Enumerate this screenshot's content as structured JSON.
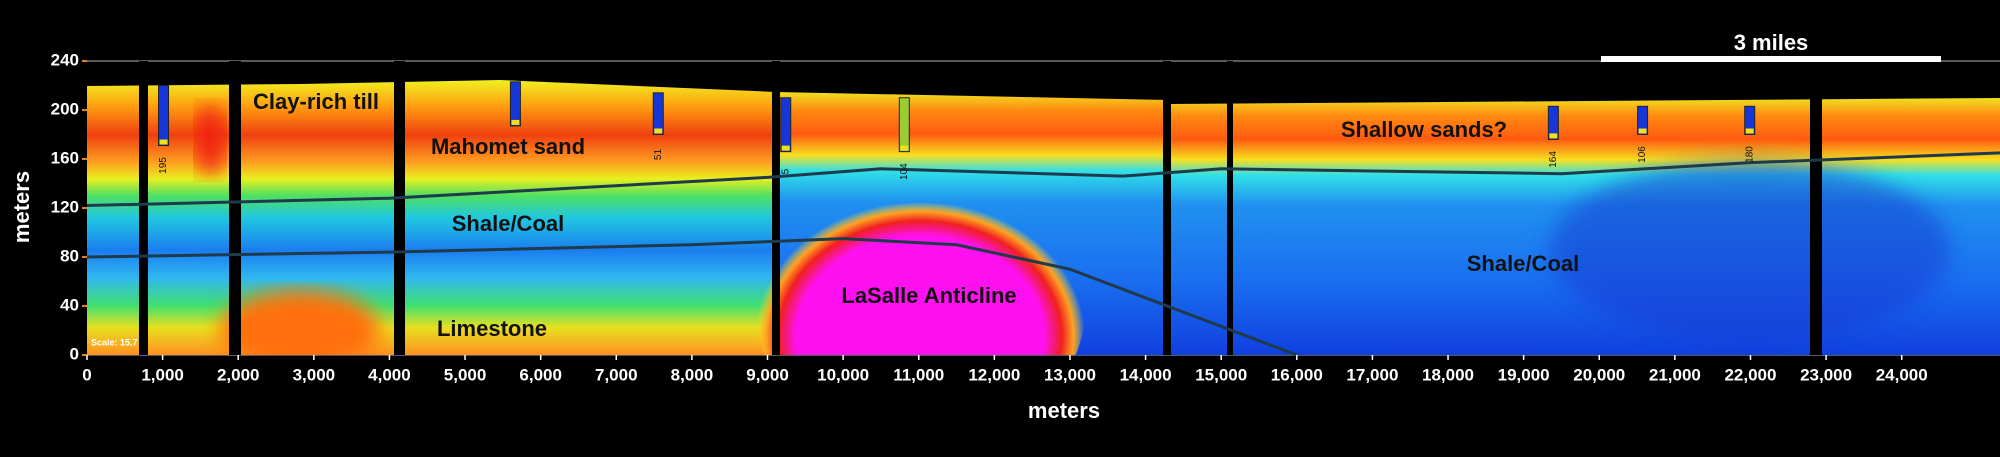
{
  "chart_data": {
    "type": "section",
    "x_label": "meters",
    "y_label": "meters",
    "xlim": [
      0,
      25300
    ],
    "ylim": [
      0,
      240
    ],
    "xticks": [
      0,
      {
        "value": 1000,
        "label": "1,000"
      },
      {
        "value": 2000,
        "label": "2,000"
      },
      {
        "value": 3000,
        "label": "3,000"
      },
      {
        "value": 4000,
        "label": "4,000"
      },
      {
        "value": 5000,
        "label": "5,000"
      },
      {
        "value": 6000,
        "label": "6,000"
      },
      {
        "value": 7000,
        "label": "7,000"
      },
      {
        "value": 8000,
        "label": "8,000"
      },
      {
        "value": 9000,
        "label": "9,000"
      },
      {
        "value": 10000,
        "label": "10,000"
      },
      {
        "value": 11000,
        "label": "11,000"
      },
      {
        "value": 12000,
        "label": "12,000"
      },
      {
        "value": 13000,
        "label": "13,000"
      },
      {
        "value": 14000,
        "label": "14,000"
      },
      {
        "value": 15000,
        "label": "15,000"
      },
      {
        "value": 16000,
        "label": "16,000"
      },
      {
        "value": 17000,
        "label": "17,000"
      },
      {
        "value": 18000,
        "label": "18,000"
      },
      {
        "value": 19000,
        "label": "19,000"
      },
      {
        "value": 20000,
        "label": "20,000"
      },
      {
        "value": 21000,
        "label": "21,000"
      },
      {
        "value": 22000,
        "label": "22,000"
      },
      {
        "value": 23000,
        "label": "23,000"
      },
      {
        "value": 24000,
        "label": "24,000"
      }
    ],
    "yticks": [
      0,
      40,
      80,
      120,
      160,
      200,
      240
    ],
    "grid": true,
    "annotations": [
      "Clay-rich till",
      "Mahomet sand",
      "Shale/Coal",
      "Limestone",
      "LaSalle Anticline",
      "Shallow sands?",
      "Shale/Coal"
    ],
    "scale_bar": "3 miles",
    "scale_note": "Scale: 15.7",
    "boundaries": [
      {
        "color": "#1f3a4a",
        "x": [
          0,
          4000,
          9000,
          10500,
          13700,
          15000,
          19500,
          22000,
          25300
        ],
        "y": [
          122,
          128,
          145,
          152,
          146,
          152,
          148,
          157,
          165
        ]
      },
      {
        "color": "#1f3a4a",
        "x": [
          0,
          4000,
          8000,
          10000,
          11500,
          13000,
          14500,
          16000
        ],
        "y": [
          80,
          84,
          90,
          95,
          90,
          70,
          35,
          0
        ]
      }
    ],
    "boreholes": [
      {
        "x": 1012,
        "top": 220,
        "bottom": 171,
        "label": "195",
        "color": "#1636d8"
      },
      {
        "x": 5666,
        "top": 223,
        "bottom": 187,
        "color": "#1636d8"
      },
      {
        "x": 7555,
        "top": 214,
        "bottom": 180,
        "label": "51",
        "color": "#1636d8"
      },
      {
        "x": 9241,
        "top": 210,
        "bottom": 166,
        "label": "5",
        "color": "#1636d8"
      },
      {
        "x": 10809,
        "top": 210,
        "bottom": 166,
        "label": "104",
        "color": "#9acd32"
      },
      {
        "x": 19393,
        "top": 203,
        "bottom": 176,
        "label": "164",
        "color": "#1636d8"
      },
      {
        "x": 20573,
        "top": 203,
        "bottom": 180,
        "label": "106",
        "color": "#1636d8"
      },
      {
        "x": 21990,
        "top": 203,
        "bottom": 180,
        "label": "180",
        "color": "#1636d8"
      }
    ]
  }
}
